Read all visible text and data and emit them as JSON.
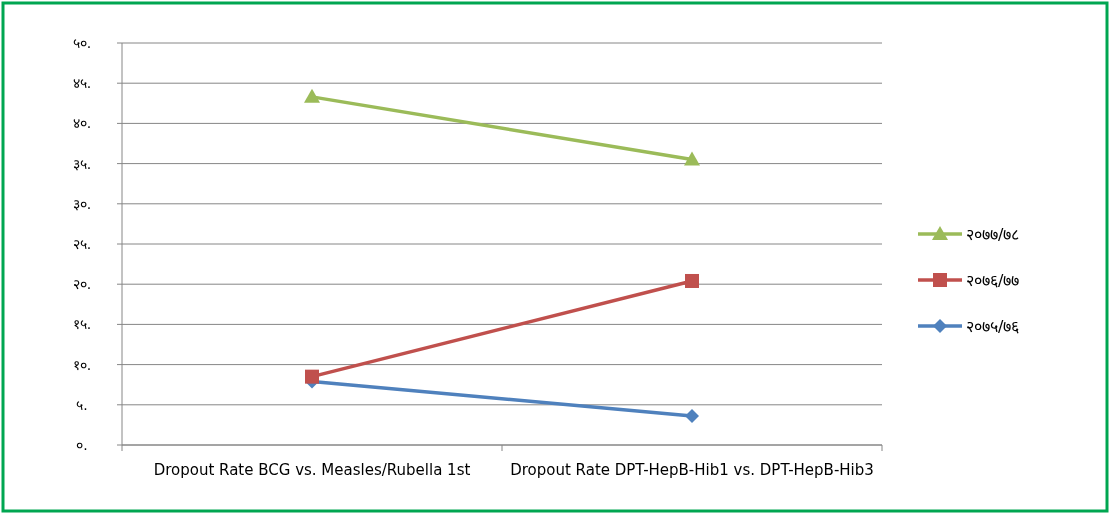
{
  "chart_data": {
    "type": "line",
    "categories": [
      "Dropout Rate BCG vs. Measles/Rubella 1st",
      "Dropout Rate DPT-HepB-Hib1 vs. DPT-HepB-Hib3"
    ],
    "series": [
      {
        "name": "२०७७/७८",
        "color": "#9bbb59",
        "marker": "triangle",
        "values": [
          43.3,
          35.5
        ]
      },
      {
        "name": "२०७६/७७",
        "color": "#c0504d",
        "marker": "square",
        "values": [
          8.5,
          20.4
        ]
      },
      {
        "name": "२०७५/७६",
        "color": "#4f81bd",
        "marker": "diamond",
        "values": [
          7.9,
          3.6
        ]
      }
    ],
    "ylim": [
      0,
      50
    ],
    "yticks": [
      {
        "value": 0,
        "label": "०."
      },
      {
        "value": 5,
        "label": "५."
      },
      {
        "value": 10,
        "label": "१०."
      },
      {
        "value": 15,
        "label": "१५."
      },
      {
        "value": 20,
        "label": "२०."
      },
      {
        "value": 25,
        "label": "२५."
      },
      {
        "value": 30,
        "label": "३०."
      },
      {
        "value": 35,
        "label": "३५."
      },
      {
        "value": 40,
        "label": "४०."
      },
      {
        "value": 45,
        "label": "४५."
      },
      {
        "value": 50,
        "label": "५०."
      }
    ],
    "grid": "y",
    "legend": "right"
  }
}
